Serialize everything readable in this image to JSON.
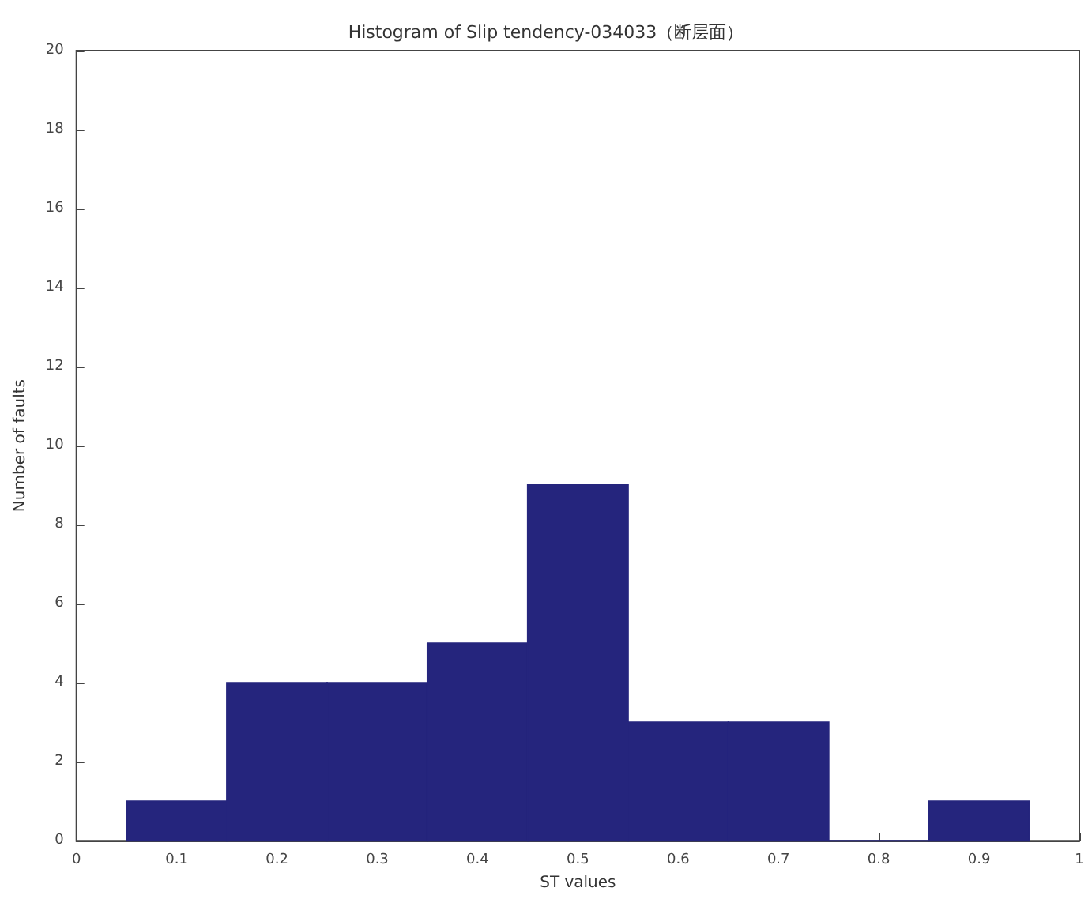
{
  "chart_data": {
    "type": "histogram",
    "title": "Histogram of Slip tendency-034033（断层面）",
    "xlabel": "ST values",
    "ylabel": "Number of faults",
    "bins": [
      0.05,
      0.15,
      0.25,
      0.35,
      0.45,
      0.55,
      0.65,
      0.75,
      0.85,
      0.95
    ],
    "values": [
      1,
      4,
      4,
      5,
      9,
      3,
      3,
      0,
      1
    ],
    "color": "#25257d",
    "xlim": [
      0,
      1
    ],
    "xticks": [
      0,
      0.1,
      0.2,
      0.3,
      0.4,
      0.5,
      0.6,
      0.7,
      0.8,
      0.9,
      1
    ],
    "ylim": [
      0,
      20
    ],
    "yticks": [
      0,
      2,
      4,
      6,
      8,
      10,
      12,
      14,
      16,
      18,
      20
    ],
    "grid": false
  }
}
